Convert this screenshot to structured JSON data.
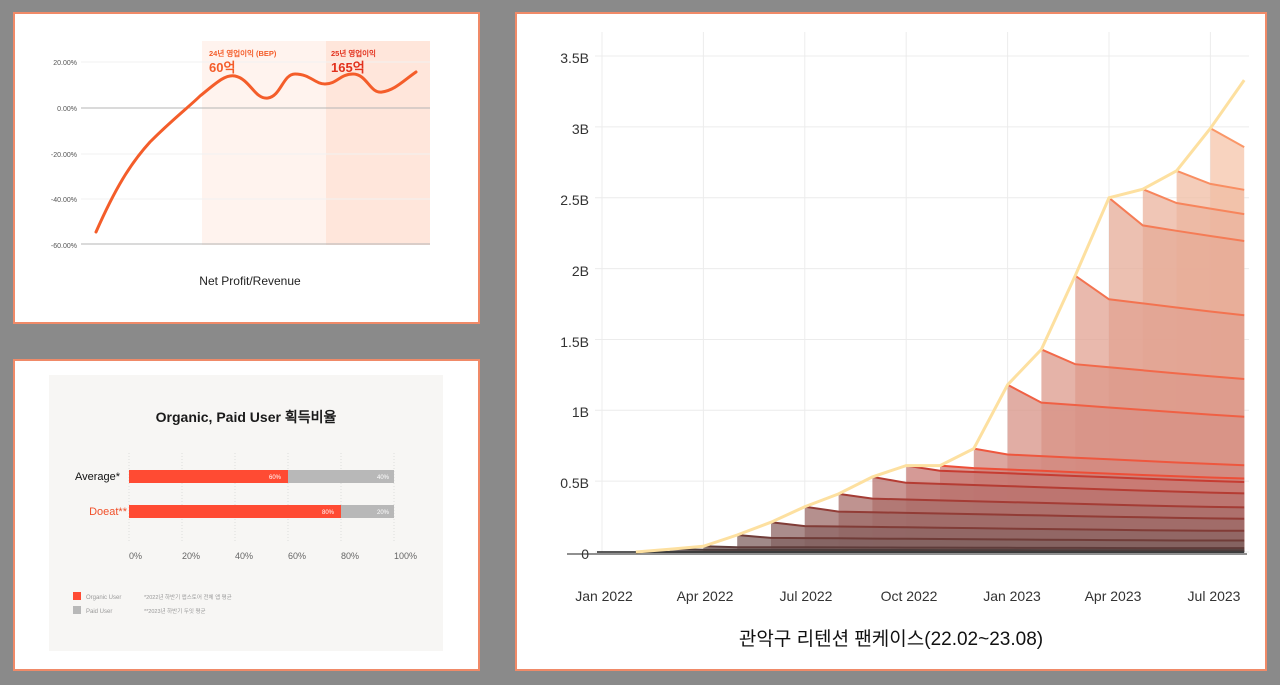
{
  "colors": {
    "page_bg": "#8a8a8a",
    "card_border": "#f08a68",
    "accent_orange": "#f45d2a",
    "accent_red": "#e2311d",
    "organic_red": "#ff4b33",
    "paid_gray": "#b8b8b8",
    "envelope_yellow": "#fde0a0"
  },
  "profit_chart": {
    "title": "Net Profit/Revenue",
    "annotations": [
      {
        "label": "24년 영업이익 (BEP)",
        "value": "60억"
      },
      {
        "label": "25년 영업이익",
        "value": "165억"
      }
    ],
    "y_ticks": [
      "20.00%",
      "0.00%",
      "-20.00%",
      "-40.00%",
      "-60.00%"
    ]
  },
  "ratio_chart": {
    "title": "Organic, Paid User 획득비율",
    "rows": [
      {
        "label": "Average*",
        "organic": "60%",
        "paid": "40%"
      },
      {
        "label": "Doeat**",
        "organic": "80%",
        "paid": "20%"
      }
    ],
    "x_ticks": [
      "0%",
      "20%",
      "40%",
      "60%",
      "80%",
      "100%"
    ],
    "legend": [
      {
        "label": "Organic User"
      },
      {
        "label": "Paid User"
      }
    ],
    "footnotes": [
      "*2022년 하반기 앱스토어 전체 앱 평균",
      "**2023년 하반기 두잇 평균"
    ]
  },
  "pancake_chart": {
    "title": "관악구 리텐션 팬케이스(22.02~23.08)",
    "y_ticks": [
      "3.5B",
      "3B",
      "2.5B",
      "2B",
      "1.5B",
      "1B",
      "0.5B",
      "0"
    ],
    "x_ticks": [
      "Jan 2022",
      "Apr 2022",
      "Jul 2022",
      "Oct 2022",
      "Jan 2023",
      "Apr 2023",
      "Jul 2023"
    ]
  },
  "chart_data": [
    {
      "type": "line",
      "title": "Net Profit/Revenue",
      "xlabel": "",
      "ylabel": "",
      "ylim": [
        -60,
        20
      ],
      "y_ticks": [
        20,
        0,
        -20,
        -40,
        -60
      ],
      "grid": true,
      "series": [
        {
          "name": "Net Profit/Revenue (%)",
          "x": [
            0,
            1,
            2,
            3,
            4,
            5,
            6,
            7,
            8,
            9,
            10,
            11,
            12
          ],
          "values": [
            -55,
            -36,
            -20,
            -8,
            2,
            10,
            4,
            14,
            10,
            15,
            7,
            12,
            16
          ]
        }
      ],
      "annotations": [
        {
          "text": "24년 영업이익 (BEP) 60억",
          "region": "shaded band 1"
        },
        {
          "text": "25년 영업이익 165억",
          "region": "shaded band 2"
        }
      ]
    },
    {
      "type": "bar",
      "orientation": "horizontal-stacked",
      "title": "Organic, Paid User 획득비율",
      "categories": [
        "Average*",
        "Doeat**"
      ],
      "series": [
        {
          "name": "Organic User",
          "values": [
            60,
            80
          ]
        },
        {
          "name": "Paid User",
          "values": [
            40,
            20
          ]
        }
      ],
      "xlim": [
        0,
        100
      ],
      "x_ticks": [
        "0%",
        "20%",
        "40%",
        "60%",
        "80%",
        "100%"
      ],
      "legend_position": "bottom-left",
      "footnotes": [
        "*2022년 하반기 앱스토어 전체 앱 평균",
        "**2023년 하반기 두잇 평균"
      ]
    },
    {
      "type": "area",
      "stacked": true,
      "title": "관악구 리텐션 팬케이스(22.02~23.08)",
      "xlabel": "",
      "ylabel": "",
      "ylim": [
        0,
        3.5
      ],
      "y_unit": "B",
      "y_ticks": [
        "0",
        "0.5B",
        "1B",
        "1.5B",
        "2B",
        "2.5B",
        "3B",
        "3.5B"
      ],
      "x_ticks": [
        "Jan 2022",
        "Apr 2022",
        "Jul 2022",
        "Oct 2022",
        "Jan 2023",
        "Apr 2023",
        "Jul 2023"
      ],
      "grid": true,
      "x": [
        "2022-02",
        "2022-03",
        "2022-04",
        "2022-05",
        "2022-06",
        "2022-07",
        "2022-08",
        "2022-09",
        "2022-10",
        "2022-11",
        "2022-12",
        "2023-01",
        "2023-02",
        "2023-03",
        "2023-04",
        "2023-05",
        "2023-06",
        "2023-07",
        "2023-08"
      ],
      "total": [
        0.0,
        0.02,
        0.04,
        0.12,
        0.21,
        0.32,
        0.41,
        0.53,
        0.61,
        0.61,
        0.73,
        1.18,
        1.43,
        1.95,
        2.5,
        2.56,
        2.69,
        2.99,
        3.33
      ],
      "cohort_note": "Each monthly cohort forms one stacked layer; older cohorts (bottom) dark gray, newer cohorts (top) light orange"
    }
  ]
}
